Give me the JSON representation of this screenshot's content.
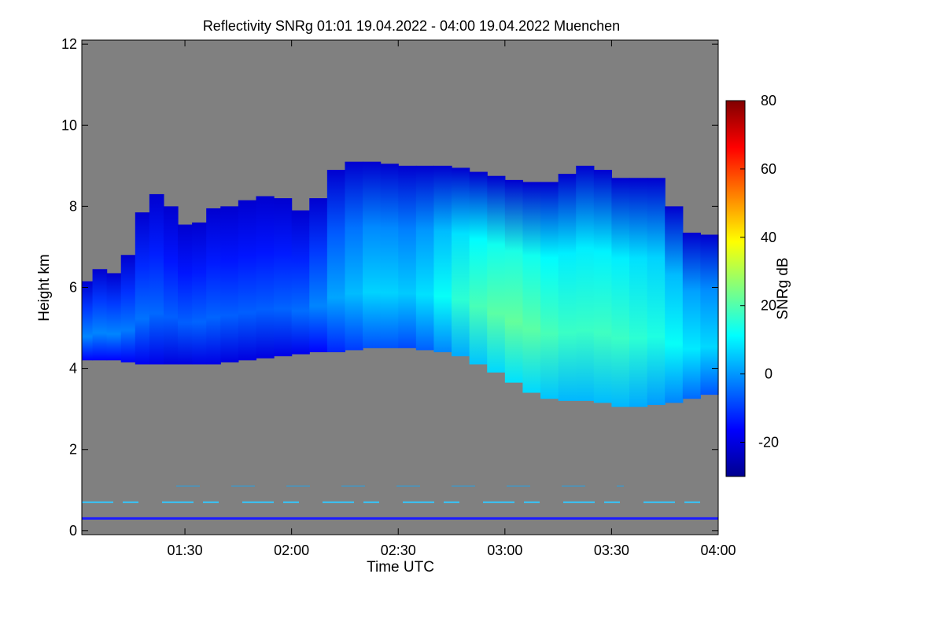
{
  "chart_data": {
    "type": "heatmap",
    "title": "Reflectivity SNRg   01:01 19.04.2022 - 04:00 19.04.2022 Muenchen",
    "xlabel": "Time UTC",
    "ylabel": "Height km",
    "colorbar_label": "SNRg dB",
    "x_ticks": [
      {
        "label": "01:30",
        "minutes": 90
      },
      {
        "label": "02:00",
        "minutes": 120
      },
      {
        "label": "02:30",
        "minutes": 150
      },
      {
        "label": "03:00",
        "minutes": 180
      },
      {
        "label": "03:30",
        "minutes": 210
      },
      {
        "label": "04:00",
        "minutes": 240
      }
    ],
    "y_ticks": [
      0,
      2,
      4,
      6,
      8,
      10,
      12
    ],
    "colorbar_ticks": [
      -20,
      0,
      20,
      40,
      60,
      80
    ],
    "xlim_minutes": [
      61,
      240
    ],
    "ylim_km": [
      -0.1,
      12.1
    ],
    "colorbar_range": [
      -30,
      80
    ],
    "background_color": "#808080",
    "colormap": [
      "#00008f",
      "#0000ff",
      "#0080ff",
      "#00ffff",
      "#80ff80",
      "#ffff00",
      "#ff8000",
      "#ff0000",
      "#800000"
    ],
    "cloud": {
      "x_minutes": [
        61,
        64,
        68,
        72,
        76,
        80,
        84,
        88,
        92,
        96,
        100,
        105,
        110,
        115,
        120,
        125,
        130,
        135,
        140,
        145,
        150,
        155,
        160,
        165,
        170,
        175,
        180,
        185,
        190,
        195,
        200,
        205,
        210,
        215,
        220,
        225,
        230,
        235,
        240
      ],
      "top_km": [
        5.7,
        6.6,
        6.3,
        6.4,
        7.2,
        8.5,
        8.1,
        7.9,
        7.2,
        8.0,
        7.9,
        8.1,
        8.2,
        8.3,
        8.1,
        7.7,
        8.7,
        9.1,
        9.1,
        9.1,
        9.0,
        9.0,
        9.0,
        9.0,
        8.9,
        8.8,
        8.7,
        8.6,
        8.6,
        8.6,
        9.0,
        9.0,
        8.8,
        8.6,
        8.8,
        8.6,
        7.4,
        7.3,
        7.3
      ],
      "base_km": [
        4.2,
        4.2,
        4.2,
        4.2,
        4.1,
        4.1,
        4.1,
        4.1,
        4.1,
        4.1,
        4.1,
        4.2,
        4.2,
        4.3,
        4.3,
        4.4,
        4.4,
        4.4,
        4.5,
        4.5,
        4.5,
        4.5,
        4.4,
        4.4,
        4.2,
        4.0,
        3.8,
        3.5,
        3.3,
        3.2,
        3.2,
        3.2,
        3.1,
        3.0,
        3.1,
        3.1,
        3.2,
        3.3,
        3.4
      ],
      "peak_snr_db": [
        -2,
        -2,
        -2,
        -2,
        -4,
        -4,
        -6,
        -6,
        -6,
        -5,
        -6,
        -6,
        -6,
        -6,
        -5,
        -4,
        0,
        3,
        5,
        8,
        5,
        6,
        10,
        14,
        18,
        20,
        22,
        22,
        20,
        18,
        17,
        18,
        18,
        17,
        15,
        14,
        10,
        8,
        6
      ]
    },
    "noise_band_km": [
      0.7,
      1.1
    ],
    "ground_line_km": 0.3
  }
}
